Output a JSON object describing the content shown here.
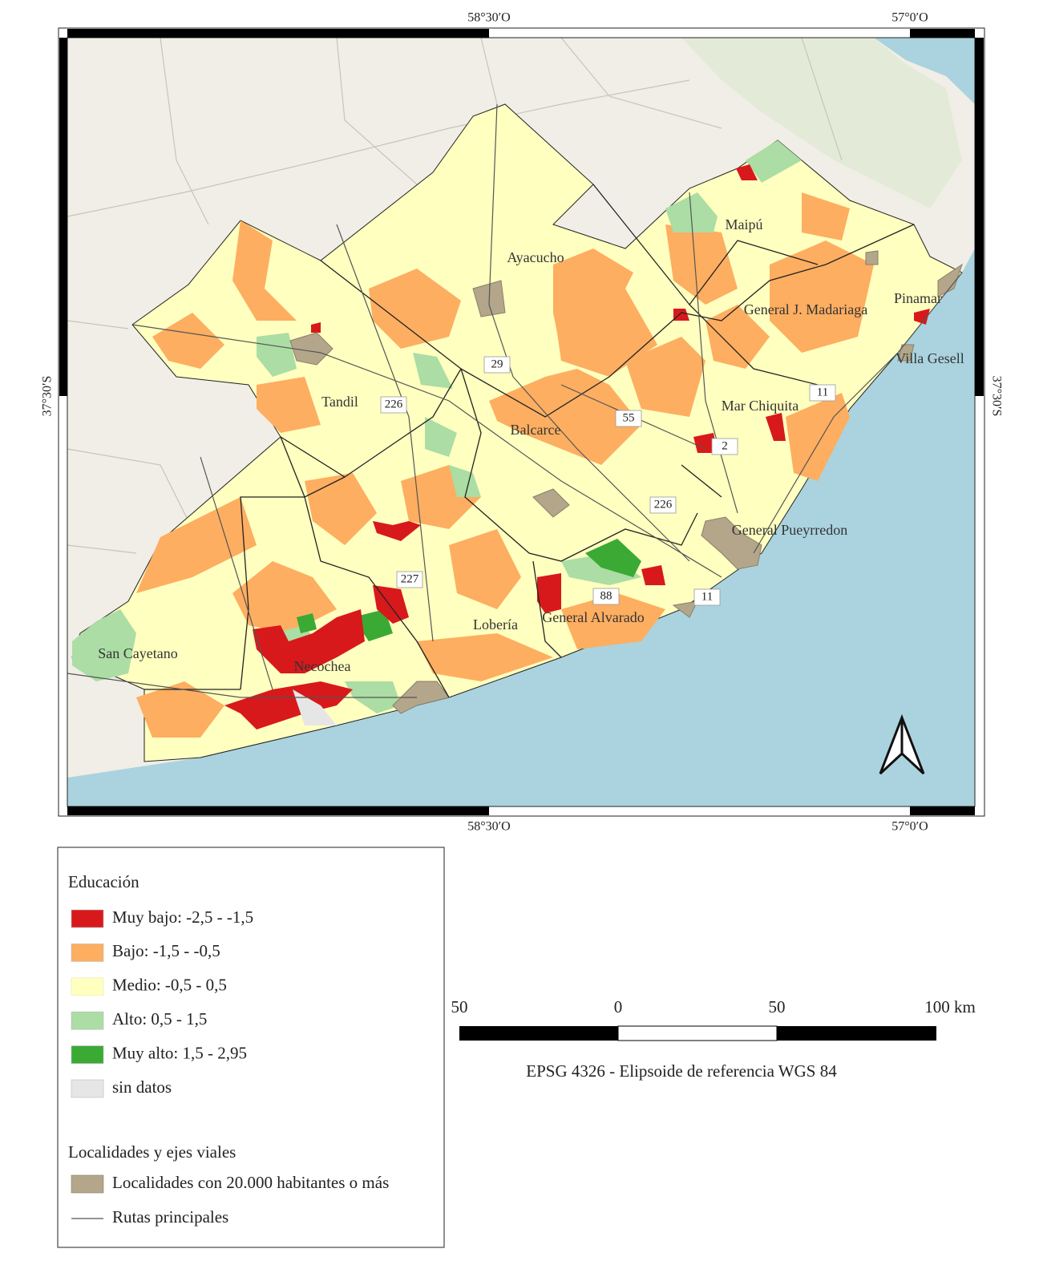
{
  "frame": {
    "top_ticks": [
      "58°30′O",
      "57°0′O"
    ],
    "bottom_ticks": [
      "58°30′O",
      "57°0′O"
    ],
    "left_tick": "37°30′S",
    "right_tick": "37°30′S"
  },
  "places": [
    "Ayacucho",
    "Maipú",
    "Pinamar",
    "General J. Madariaga",
    "Villa Gesell",
    "Tandil",
    "Balcarce",
    "Mar Chiquita",
    "General Pueyrredon",
    "General Alvarado",
    "Lobería",
    "Necochea",
    "San Cayetano"
  ],
  "routes": [
    "29",
    "226",
    "55",
    "11",
    "2",
    "226",
    "227",
    "88",
    "11"
  ],
  "legend": {
    "title": "Educación",
    "items": [
      {
        "label": "Muy bajo: -2,5 - -1,5",
        "color": "#d7191c"
      },
      {
        "label": "Bajo: -1,5 - -0,5",
        "color": "#fdae61"
      },
      {
        "label": "Medio: -0,5 - 0,5",
        "color": "#ffffc0"
      },
      {
        "label": "Alto: 0,5 - 1,5",
        "color": "#abdda4"
      },
      {
        "label": "Muy alto: 1,5 - 2,95",
        "color": "#3aaa35"
      },
      {
        "label": "sin datos",
        "color": "#e6e6e6"
      }
    ],
    "section2": {
      "title": "Localidades y ejes viales",
      "items": [
        {
          "label": "Localidades con 20.000 habitantes o más",
          "color": "#b3a68a"
        },
        {
          "label": "Rutas principales",
          "color": "#555555"
        }
      ]
    }
  },
  "scale": {
    "labels": [
      "50",
      "0",
      "50",
      "100 km"
    ],
    "caption": "EPSG 4326 - Elipsoide de referencia WGS 84"
  }
}
